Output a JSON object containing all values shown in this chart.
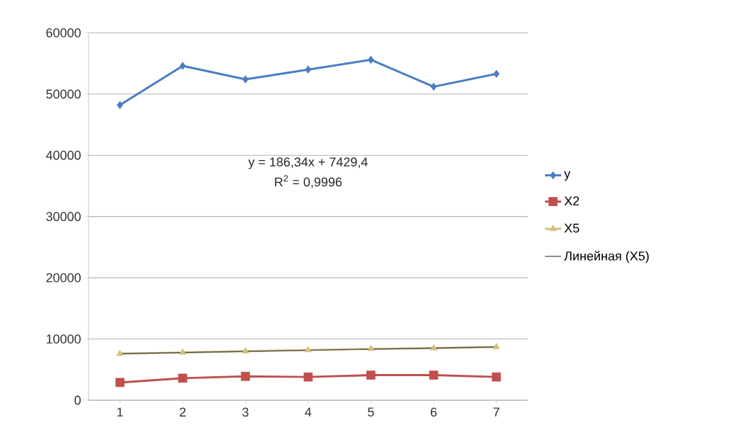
{
  "chart_data": {
    "type": "line",
    "x": [
      1,
      2,
      3,
      4,
      5,
      6,
      7
    ],
    "xlim": [
      0.5,
      7.5
    ],
    "xticks": [
      1,
      2,
      3,
      4,
      5,
      6,
      7
    ],
    "ylim": [
      0,
      60000
    ],
    "yticks": [
      0,
      10000,
      20000,
      30000,
      40000,
      50000,
      60000
    ],
    "grid": "y",
    "legend": "right",
    "series": [
      {
        "name": "y",
        "color": "#4a7cc4",
        "marker": "diamond",
        "values": [
          48200,
          54600,
          52400,
          54000,
          55600,
          51200,
          53300
        ]
      },
      {
        "name": "X2",
        "color": "#c0504d",
        "marker": "square",
        "values": [
          2900,
          3600,
          3900,
          3800,
          4100,
          4100,
          3800
        ]
      },
      {
        "name": "X5",
        "color": "#d4c07a",
        "marker": "triangle",
        "values": [
          7600,
          7800,
          8000,
          8200,
          8400,
          8500,
          8700
        ]
      },
      {
        "name": "Линейная (X5)",
        "color": "#555555",
        "marker": "none",
        "x": [
          1,
          7
        ],
        "values": [
          7600,
          8700
        ]
      }
    ],
    "annotations": [
      "y = 186,34x + 7429,4",
      "R$^{2}$ = 0,9996"
    ]
  }
}
